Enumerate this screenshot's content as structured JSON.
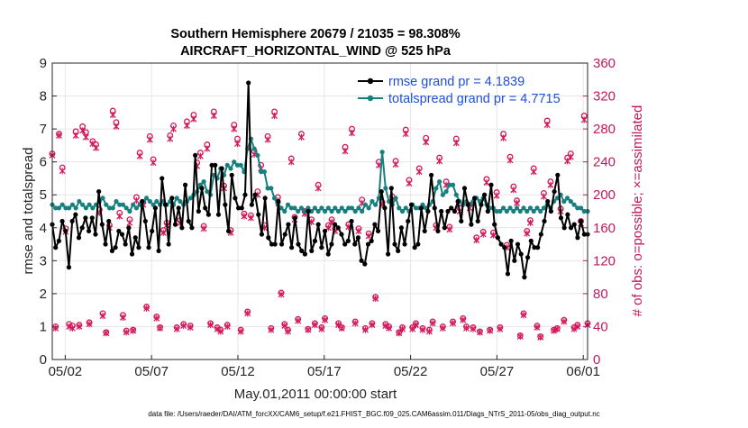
{
  "colors": {
    "rmse": "#000000",
    "spread": "#17807e",
    "obs": "#d3195b",
    "right_axis": "#c2185b",
    "grid": "#e6e6e6",
    "legend_text": "#1f4fd8"
  },
  "chart_data": {
    "type": "line",
    "title": "Southern Hemisphere 20679 / 21035 = 98.308%",
    "subtitle": "AIRCRAFT_HORIZONTAL_WIND @ 525 hPa",
    "xlabel": "May.01,2011 00:00:00 start",
    "ylabel": "rmse and totalspread",
    "y2label": "# of obs: o=possible; ×=assimilated",
    "footnote": "data file: /Users/raeder/DAI/ATM_forcXX/CAM6_setup/f.e21.FHIST_BGC.f09_025.CAM6assim.011/Diags_NTrS_2011-05/obs_diag_output.nc",
    "xlim": [
      0.25,
      31.25
    ],
    "ylim": [
      0,
      9
    ],
    "y2lim": [
      0,
      360
    ],
    "x_ticks": [
      {
        "value": 1,
        "label": "05/02"
      },
      {
        "value": 6,
        "label": "05/07"
      },
      {
        "value": 11,
        "label": "05/12"
      },
      {
        "value": 16,
        "label": "05/17"
      },
      {
        "value": 21,
        "label": "05/22"
      },
      {
        "value": 26,
        "label": "05/27"
      },
      {
        "value": 31,
        "label": "06/01"
      }
    ],
    "y_ticks": [
      "0",
      "1",
      "2",
      "3",
      "4",
      "5",
      "6",
      "7",
      "8",
      "9"
    ],
    "y2_ticks": [
      "0",
      "40",
      "80",
      "120",
      "160",
      "200",
      "240",
      "280",
      "320",
      "360"
    ],
    "grid": true,
    "legend_position": "top-right",
    "legend": [
      {
        "label": "rmse grand pr = 4.1839",
        "series": "rmse"
      },
      {
        "label": "totalspread grand pr = 4.7715",
        "series": "totalspread"
      }
    ],
    "series": [
      {
        "name": "rmse",
        "axis": "left",
        "values": [
          4.1,
          3.4,
          3.6,
          4.2,
          3.9,
          2.8,
          4.2,
          4.4,
          3.7,
          4.0,
          4.3,
          3.9,
          4.3,
          3.8,
          5.1,
          4.1,
          3.5,
          4.2,
          3.3,
          3.4,
          3.9,
          3.8,
          3.5,
          4.0,
          3.2,
          3.7,
          3.4,
          4.8,
          4.2,
          3.4,
          3.9,
          4.6,
          3.3,
          5.5,
          4.7,
          3.5,
          4.9,
          4.1,
          4.6,
          4.0,
          5.3,
          4.2,
          4.0,
          6.2,
          4.5,
          5.2,
          4.6,
          4.4,
          5.9,
          5.9,
          4.4,
          5.8,
          4.7,
          3.9,
          5.6,
          4.9,
          4.6,
          4.6,
          5.0,
          8.4,
          4.7,
          5.0,
          4.4,
          3.8,
          4.9,
          3.7,
          3.5,
          3.5,
          4.8,
          3.5,
          3.8,
          4.1,
          3.4,
          4.3,
          3.5,
          3.3,
          3.2,
          4.5,
          3.3,
          3.6,
          4.1,
          3.4,
          3.9,
          3.2,
          3.5,
          4.1,
          4.0,
          3.8,
          3.5,
          3.6,
          4.2,
          3.5,
          3.7,
          3.0,
          2.9,
          3.5,
          3.6,
          4.1,
          3.9,
          5.1,
          4.6,
          3.2,
          5.2,
          3.5,
          3.3,
          4.0,
          3.5,
          4.2,
          4.7,
          3.4,
          3.5,
          4.6,
          3.9,
          4.5,
          5.6,
          4.6,
          3.9,
          4.5,
          4.0,
          4.5,
          4.6,
          4.5,
          4.8,
          4.2,
          5.2,
          4.7,
          4.1,
          4.9,
          4.2,
          4.7,
          5.0,
          4.5,
          5.3,
          4.1,
          3.7,
          3.5,
          3.4,
          2.6,
          3.6,
          3.0,
          3.5,
          3.2,
          2.5,
          3.1,
          3.6,
          3.4,
          3.4,
          3.8,
          4.2,
          4.8,
          4.5,
          5.1,
          5.6,
          4.3,
          4.0,
          4.4,
          4.0,
          4.1,
          3.7,
          4.2,
          3.8,
          3.8
        ]
      },
      {
        "name": "totalspread",
        "axis": "left",
        "values": [
          4.7,
          4.6,
          4.6,
          4.7,
          4.6,
          4.6,
          4.7,
          4.6,
          4.8,
          4.7,
          4.6,
          4.7,
          4.6,
          4.7,
          4.8,
          4.9,
          4.7,
          4.6,
          4.6,
          4.8,
          4.7,
          4.7,
          4.6,
          4.5,
          4.7,
          4.6,
          4.7,
          4.8,
          4.9,
          4.8,
          4.7,
          4.8,
          4.7,
          4.8,
          4.7,
          4.8,
          4.7,
          4.9,
          4.8,
          4.7,
          4.8,
          4.9,
          5.0,
          5.1,
          5.3,
          5.4,
          5.1,
          5.0,
          5.6,
          5.5,
          5.8,
          5.6,
          5.9,
          5.8,
          6.0,
          5.9,
          5.9,
          5.7,
          6.4,
          6.7,
          6.4,
          6.2,
          5.7,
          5.7,
          5.2,
          5.2,
          4.9,
          4.7,
          4.6,
          4.5,
          4.7,
          4.6,
          4.6,
          4.5,
          4.6,
          4.5,
          4.6,
          4.5,
          4.6,
          4.5,
          4.6,
          4.5,
          4.6,
          4.5,
          4.6,
          4.5,
          4.6,
          4.5,
          4.6,
          4.6,
          4.5,
          4.6,
          4.5,
          4.7,
          4.6,
          4.8,
          4.7,
          4.9,
          6.3,
          5.2,
          4.8,
          4.7,
          4.9,
          4.6,
          4.5,
          4.6,
          4.5,
          4.7,
          4.6,
          4.6,
          4.7,
          4.6,
          4.7,
          4.8,
          5.2,
          5.4,
          5.0,
          5.1,
          5.3,
          5.3,
          5.0,
          4.8,
          4.7,
          4.8,
          4.7,
          4.8,
          4.9,
          4.8,
          4.9,
          4.7,
          4.6,
          4.6,
          4.5,
          4.5,
          4.6,
          4.5,
          4.6,
          4.5,
          4.6,
          4.5,
          4.6,
          4.5,
          4.6,
          4.5,
          4.6,
          4.5,
          4.6,
          4.7,
          4.6,
          4.8,
          4.9,
          5.0,
          4.8,
          4.9,
          4.8,
          4.7,
          4.6,
          4.6,
          4.5,
          4.5
        ]
      },
      {
        "name": "obs_possible",
        "axis": "right",
        "values": [
          250,
          40,
          274,
          233,
          159,
          43,
          41,
          277,
          42,
          283,
          276,
          45,
          265,
          261,
          182,
          56,
          33,
          163,
          302,
          288,
          178,
          54,
          35,
          170,
          36,
          197,
          251,
          191,
          64,
          271,
          243,
          52,
          39,
          157,
          166,
          272,
          284,
          39,
          169,
          43,
          289,
          41,
          297,
          239,
          251,
          162,
          261,
          44,
          301,
          39,
          36,
          211,
          42,
          157,
          285,
          268,
          36,
          177,
          58,
          175,
          253,
          204,
          236,
          163,
          271,
          38,
          301,
          197,
          81,
          43,
          36,
          244,
          173,
          49,
          274,
          180,
          37,
          170,
          44,
          212,
          39,
          50,
          163,
          170,
          159,
          44,
          39,
          258,
          164,
          280,
          46,
          159,
          194,
          38,
          153,
          44,
          76,
          240,
          191,
          43,
          40,
          198,
          241,
          33,
          39,
          279,
          218,
          39,
          44,
          232,
          38,
          269,
          36,
          46,
          163,
          245,
          40,
          216,
          161,
          46,
          268,
          184,
          50,
          40,
          188,
          39,
          148,
          34,
          155,
          219,
          36,
          154,
          203,
          39,
          274,
          139,
          246,
          210,
          193,
          29,
          56,
          156,
          169,
          232,
          41,
          28,
          202,
          290,
          216,
          36,
          38,
          183,
          48,
          245,
          250,
          39,
          42,
          168,
          296,
          44
        ]
      },
      {
        "name": "obs_assimilated",
        "axis": "right",
        "values": [
          248,
          38,
          272,
          229,
          155,
          40,
          38,
          272,
          40,
          278,
          270,
          43,
          262,
          257,
          178,
          53,
          32,
          160,
          297,
          283,
          174,
          51,
          33,
          166,
          35,
          193,
          247,
          188,
          62,
          267,
          239,
          50,
          38,
          154,
          163,
          268,
          280,
          37,
          166,
          41,
          284,
          39,
          292,
          235,
          247,
          159,
          256,
          42,
          296,
          37,
          34,
          208,
          40,
          154,
          280,
          262,
          34,
          174,
          56,
          172,
          249,
          200,
          232,
          160,
          267,
          36,
          296,
          193,
          79,
          41,
          34,
          240,
          170,
          47,
          270,
          177,
          36,
          167,
          42,
          208,
          37,
          48,
          160,
          167,
          156,
          42,
          38,
          253,
          161,
          275,
          44,
          156,
          190,
          36,
          150,
          42,
          74,
          236,
          188,
          41,
          38,
          195,
          237,
          32,
          37,
          274,
          214,
          37,
          42,
          228,
          36,
          264,
          34,
          44,
          160,
          241,
          38,
          212,
          158,
          44,
          263,
          180,
          48,
          38,
          184,
          37,
          145,
          33,
          152,
          215,
          35,
          151,
          199,
          37,
          269,
          136,
          242,
          206,
          190,
          28,
          54,
          153,
          166,
          228,
          39,
          27,
          198,
          285,
          212,
          35,
          37,
          180,
          46,
          241,
          246,
          37,
          40,
          165,
          291,
          42
        ]
      }
    ]
  }
}
